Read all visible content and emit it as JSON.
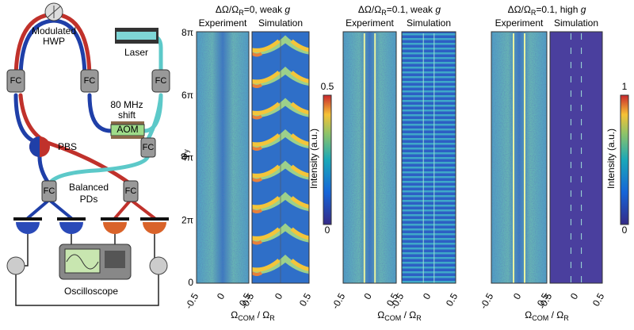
{
  "setup": {
    "fc": "FC",
    "hwp": [
      "Modulated",
      "HWP"
    ],
    "laser": "Laser",
    "shift": [
      "80 MHz",
      "shift"
    ],
    "aom": "AOM",
    "pbs": "PBS",
    "pds": [
      "Balanced",
      "PDs"
    ],
    "scope": "Oscilloscope"
  },
  "yaxis": {
    "label": {
      "main": "φ",
      "sub": "y"
    },
    "ticks": [
      "8π",
      "6π",
      "4π",
      "2π",
      "0"
    ]
  },
  "panels": [
    {
      "title": {
        "pre": "ΔΩ/Ω",
        "sub": "R",
        "post": "=0, weak ",
        "em": "g"
      },
      "heads": [
        "Experiment",
        "Simulation"
      ],
      "xticks": [
        "-0.5",
        "0",
        "0.5"
      ],
      "xlabel": {
        "a": "Ω",
        "asub": "COM",
        "mid": " / Ω",
        "bsub": "R"
      },
      "colorbar": {
        "label": "Intensity (a.u.)",
        "ticks": [
          "0.5",
          "0"
        ]
      }
    },
    {
      "title": {
        "pre": "ΔΩ/Ω",
        "sub": "R",
        "post": "=0.1, weak ",
        "em": "g"
      },
      "heads": [
        "Experiment",
        "Simulation"
      ],
      "xticks": [
        "-0.5",
        "0",
        "0.5"
      ],
      "xlabel": {
        "a": "Ω",
        "asub": "COM",
        "mid": " / Ω",
        "bsub": "R"
      }
    },
    {
      "title": {
        "pre": "ΔΩ/Ω",
        "sub": "R",
        "post": "=0.1, high ",
        "em": "g"
      },
      "heads": [
        "Experiment",
        "Simulation"
      ],
      "xticks": [
        "-0.5",
        "0",
        "0.5"
      ],
      "xlabel": {
        "a": "Ω",
        "asub": "COM",
        "mid": " / Ω",
        "bsub": "R"
      },
      "colorbar": {
        "label": "Intensity (a.u.)",
        "ticks": [
          "1",
          "0"
        ]
      }
    }
  ]
}
